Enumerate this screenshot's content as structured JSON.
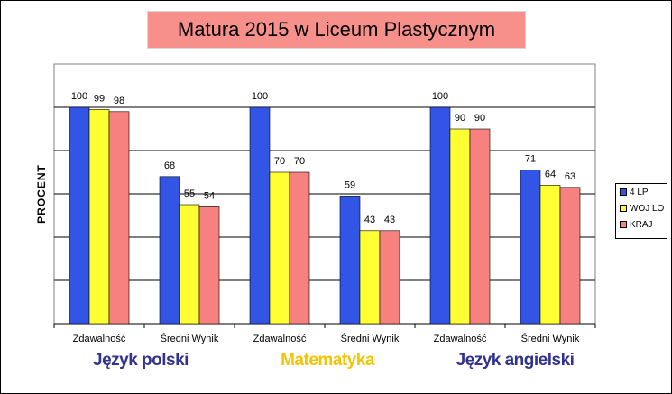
{
  "chart_data": {
    "type": "bar",
    "title": "Matura 2015 w Liceum Plastycznym",
    "ylabel": "PROCENT",
    "ylim": [
      0,
      100
    ],
    "grid": true,
    "legend_position": "right",
    "categories": [
      "Zdawalność",
      "Średni Wynik",
      "Zdawalność",
      "Średni Wynik",
      "Zdawalność",
      "Średni Wynik"
    ],
    "groups": [
      {
        "label": "Język polski",
        "color": "#33338f"
      },
      {
        "label": "Matematyka",
        "color": "#f5c400"
      },
      {
        "label": "Język angielski",
        "color": "#33338f"
      }
    ],
    "series": [
      {
        "name": "4 LP",
        "color": "#3355e6",
        "values": [
          100,
          68,
          100,
          59,
          100,
          71
        ]
      },
      {
        "name": "WOJ LO",
        "color": "#ffff33",
        "values": [
          99,
          55,
          70,
          43,
          90,
          64
        ]
      },
      {
        "name": "KRAJ",
        "color": "#f7817e",
        "values": [
          98,
          54,
          70,
          43,
          90,
          63
        ]
      }
    ]
  }
}
